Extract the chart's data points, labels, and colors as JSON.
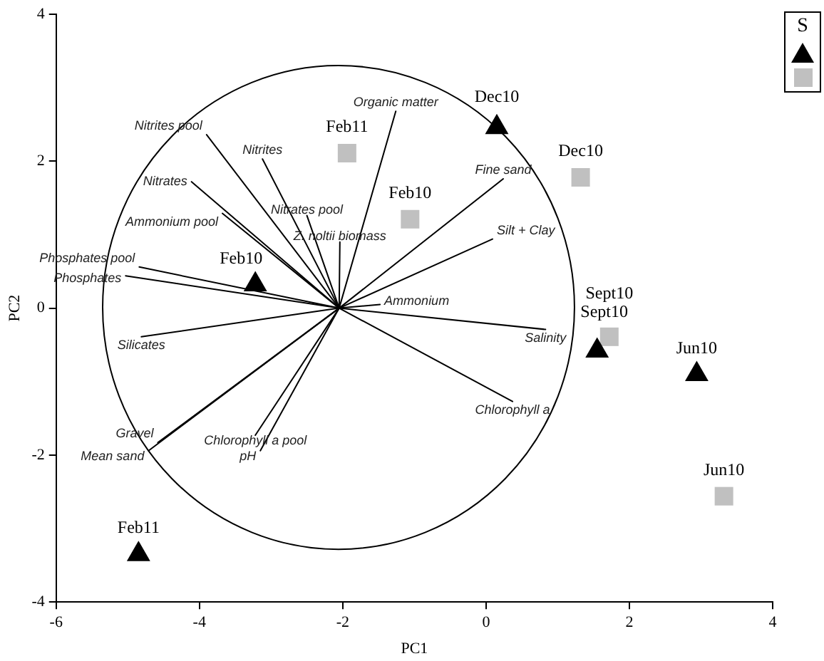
{
  "chart_data": {
    "type": "scatter",
    "xlabel": "PC1",
    "ylabel": "PC2",
    "xlim": [
      -6,
      4
    ],
    "ylim": [
      -4,
      4
    ],
    "xticks": [
      -6,
      -4,
      -2,
      0,
      2,
      4
    ],
    "yticks": [
      -4,
      -2,
      0,
      2,
      4
    ],
    "legend_title": "S",
    "series": [
      {
        "type": "scatter",
        "marker": "triangle",
        "color": "#000000",
        "x": [
          0.15,
          -3.22,
          1.55,
          2.94,
          -4.85
        ],
        "values": [
          2.46,
          0.32,
          -0.58,
          -0.9,
          -3.35
        ],
        "value_labels": [
          "Dec10",
          "Feb10",
          "Sept10",
          "Jun10",
          "Feb11"
        ]
      },
      {
        "type": "scatter",
        "marker": "square",
        "color": "#c0c0c0",
        "x": [
          -1.94,
          -1.06,
          1.32,
          1.72,
          3.32
        ],
        "values": [
          2.11,
          1.21,
          1.78,
          -0.39,
          -2.56
        ],
        "value_labels": [
          "Feb11",
          "Feb10",
          "Dec10",
          "Sept10",
          "Jun10"
        ]
      },
      {
        "type": "line",
        "name": "Nitrites pool",
        "color": "#000000",
        "x": [
          -2.05,
          -3.9
        ],
        "values": [
          0,
          2.36
        ]
      },
      {
        "type": "line",
        "name": "Nitrites",
        "color": "#000000",
        "x": [
          -2.05,
          -3.12
        ],
        "values": [
          0,
          2.03
        ]
      },
      {
        "type": "line",
        "name": "Nitrates",
        "color": "#000000",
        "x": [
          -2.05,
          -4.11
        ],
        "values": [
          0,
          1.72
        ]
      },
      {
        "type": "line",
        "name": "Ammonium pool",
        "color": "#000000",
        "x": [
          -2.05,
          -3.68
        ],
        "values": [
          0,
          1.29
        ]
      },
      {
        "type": "line",
        "name": "Nitrates pool",
        "color": "#000000",
        "x": [
          -2.05,
          -2.5
        ],
        "values": [
          0,
          1.26
        ]
      },
      {
        "type": "line",
        "name": "Z. noltii biomass",
        "color": "#000000",
        "x": [
          -2.05,
          -2.04
        ],
        "values": [
          0,
          0.9
        ]
      },
      {
        "type": "line",
        "name": "Organic matter",
        "color": "#000000",
        "x": [
          -2.05,
          -1.26
        ],
        "values": [
          0,
          2.68
        ]
      },
      {
        "type": "line",
        "name": "Phosphates pool",
        "color": "#000000",
        "x": [
          -2.05,
          -4.84
        ],
        "values": [
          0,
          0.56
        ]
      },
      {
        "type": "line",
        "name": "Phosphates",
        "color": "#000000",
        "x": [
          -2.05,
          -5.03
        ],
        "values": [
          0,
          0.44
        ]
      },
      {
        "type": "line",
        "name": "Ammonium",
        "color": "#000000",
        "x": [
          -2.05,
          -1.48
        ],
        "values": [
          0,
          0.05
        ]
      },
      {
        "type": "line",
        "name": "Silicates",
        "color": "#000000",
        "x": [
          -2.05,
          -4.81
        ],
        "values": [
          0,
          -0.39
        ]
      },
      {
        "type": "line",
        "name": "Gravel",
        "color": "#000000",
        "x": [
          -2.05,
          -4.58
        ],
        "values": [
          0,
          -1.83
        ]
      },
      {
        "type": "line",
        "name": "Mean sand",
        "color": "#000000",
        "x": [
          -2.05,
          -4.71
        ],
        "values": [
          0,
          -1.94
        ]
      },
      {
        "type": "line",
        "name": "Chlorophyll a pool",
        "color": "#000000",
        "x": [
          -2.05,
          -3.22
        ],
        "values": [
          0,
          -1.73
        ]
      },
      {
        "type": "line",
        "name": "pH",
        "color": "#000000",
        "x": [
          -2.05,
          -3.15
        ],
        "values": [
          0,
          -1.94
        ]
      },
      {
        "type": "line",
        "name": "Salinity",
        "color": "#000000",
        "x": [
          -2.05,
          0.83
        ],
        "values": [
          0,
          -0.29
        ]
      },
      {
        "type": "line",
        "name": "Chlorophyll a",
        "color": "#000000",
        "x": [
          -2.05,
          0.37
        ],
        "values": [
          0,
          -1.27
        ]
      },
      {
        "type": "line",
        "name": "Fine sand",
        "color": "#000000",
        "x": [
          -2.05,
          0.24
        ],
        "values": [
          0,
          1.76
        ]
      },
      {
        "type": "line",
        "name": "Silt + Clay",
        "color": "#000000",
        "x": [
          -2.05,
          0.09
        ],
        "values": [
          0,
          0.94
        ]
      }
    ]
  }
}
